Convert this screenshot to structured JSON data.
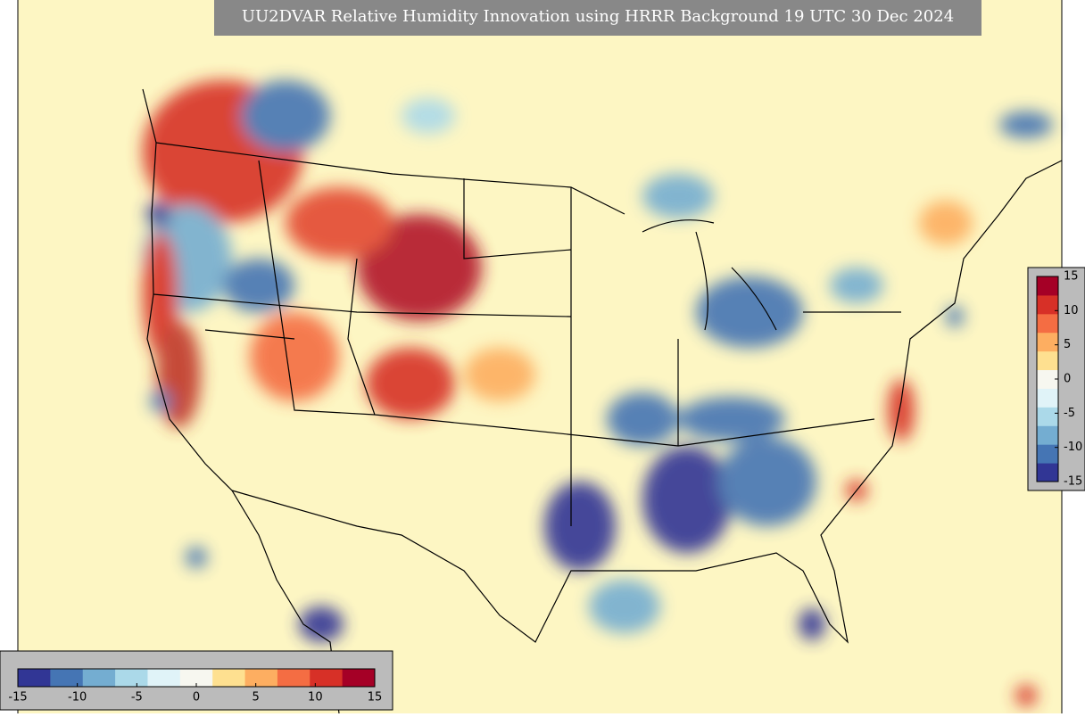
{
  "title": "UU2DVAR Relative Humidity Innovation using HRRR Background 19 UTC 30 Dec 2024",
  "colorbar_vertical": {
    "lim": [
      -15,
      15
    ],
    "ticks": [
      15,
      10,
      5,
      0,
      -5,
      -10,
      -15
    ]
  },
  "colorbar_horizontal": {
    "lim": [
      -15,
      15
    ],
    "ticks": [
      -15,
      -10,
      -5,
      0,
      5,
      10,
      15
    ]
  },
  "colormap": [
    "#313695",
    "#4575b4",
    "#74add1",
    "#abd9e9",
    "#e0f3f8",
    "#f7f7f0",
    "#fee090",
    "#fdae61",
    "#f46d43",
    "#d73027",
    "#a50026"
  ]
}
